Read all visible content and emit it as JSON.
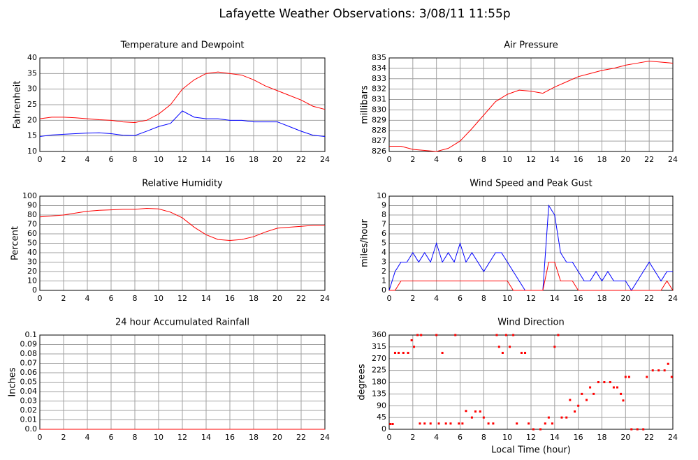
{
  "title": "Lafayette Weather Observations: 3/08/11 11:55p",
  "chart_data": [
    {
      "type": "line",
      "title": "Temperature and Dewpoint",
      "ylabel": "Fahrenheit",
      "x": [
        0,
        1,
        2,
        3,
        4,
        5,
        6,
        7,
        8,
        9,
        10,
        11,
        12,
        13,
        14,
        15,
        16,
        17,
        18,
        19,
        20,
        21,
        22,
        23,
        24
      ],
      "series": [
        {
          "color": "#ff0000",
          "values": [
            20.5,
            21,
            21,
            20.8,
            20.5,
            20.2,
            20,
            19.5,
            19.3,
            20,
            22,
            25,
            30,
            33,
            35,
            35.5,
            35,
            34.5,
            33,
            31,
            29.5,
            28,
            26.5,
            24.5,
            23.5
          ]
        },
        {
          "color": "#0000ff",
          "values": [
            14.8,
            15.3,
            15.5,
            15.7,
            15.9,
            16,
            15.7,
            15.2,
            15.1,
            16.5,
            18,
            19,
            23,
            21,
            20.5,
            20.5,
            20,
            20,
            19.5,
            19.5,
            19.5,
            18,
            16.5,
            15.2,
            14.8
          ]
        }
      ],
      "xlim": [
        0,
        24
      ],
      "xticks": [
        0,
        2,
        4,
        6,
        8,
        10,
        12,
        14,
        16,
        18,
        20,
        22,
        24
      ],
      "ylim": [
        10,
        40
      ],
      "yticks": [
        10,
        15,
        20,
        25,
        30,
        35,
        40
      ],
      "grid": true
    },
    {
      "type": "line",
      "title": "Air Pressure",
      "ylabel": "millibars",
      "x": [
        0,
        1,
        2,
        3,
        4,
        5,
        6,
        7,
        8,
        9,
        10,
        11,
        12,
        13,
        14,
        15,
        16,
        17,
        18,
        19,
        20,
        21,
        22,
        23,
        24
      ],
      "series": [
        {
          "color": "#ff0000",
          "values": [
            826.5,
            826.5,
            826.2,
            826.1,
            826,
            826.3,
            827,
            828.2,
            829.5,
            830.8,
            831.5,
            831.9,
            831.8,
            831.6,
            832.2,
            832.7,
            833.2,
            833.5,
            833.8,
            834,
            834.3,
            834.5,
            834.7,
            834.6,
            834.5
          ]
        }
      ],
      "xlim": [
        0,
        24
      ],
      "xticks": [
        0,
        2,
        4,
        6,
        8,
        10,
        12,
        14,
        16,
        18,
        20,
        22,
        24
      ],
      "ylim": [
        826,
        835
      ],
      "yticks": [
        826,
        827,
        828,
        829,
        830,
        831,
        832,
        833,
        834,
        835
      ],
      "grid": true
    },
    {
      "type": "line",
      "title": "Relative Humidity",
      "ylabel": "Percent",
      "x": [
        0,
        1,
        2,
        3,
        4,
        5,
        6,
        7,
        8,
        9,
        10,
        11,
        12,
        13,
        14,
        15,
        16,
        17,
        18,
        19,
        20,
        21,
        22,
        23,
        24
      ],
      "series": [
        {
          "color": "#ff0000",
          "values": [
            78,
            79,
            80,
            82,
            84,
            85,
            85.5,
            86,
            86,
            87,
            86.5,
            83,
            77,
            67,
            59,
            54,
            53,
            54,
            57,
            62,
            66,
            67,
            68,
            69,
            69
          ]
        }
      ],
      "xlim": [
        0,
        24
      ],
      "xticks": [
        0,
        2,
        4,
        6,
        8,
        10,
        12,
        14,
        16,
        18,
        20,
        22,
        24
      ],
      "ylim": [
        0,
        100
      ],
      "yticks": [
        0,
        10,
        20,
        30,
        40,
        50,
        60,
        70,
        80,
        90,
        100
      ],
      "grid": true
    },
    {
      "type": "line",
      "title": "Wind Speed and Peak Gust",
      "ylabel": "miles/hour",
      "x": [
        0,
        0.5,
        1,
        1.5,
        2,
        2.5,
        3,
        3.5,
        4,
        4.5,
        5,
        5.5,
        6,
        6.5,
        7,
        7.5,
        8,
        8.5,
        9,
        9.5,
        10,
        10.5,
        11,
        11.5,
        12,
        12.5,
        13,
        13.5,
        14,
        14.5,
        15,
        15.5,
        16,
        16.5,
        17,
        17.5,
        18,
        18.5,
        19,
        19.5,
        20,
        20.5,
        21,
        21.5,
        22,
        22.5,
        23,
        23.5,
        24
      ],
      "series": [
        {
          "color": "#0000ff",
          "values": [
            0,
            2,
            3,
            3,
            4,
            3,
            4,
            3,
            5,
            3,
            4,
            3,
            5,
            3,
            4,
            3,
            2,
            3,
            4,
            4,
            3,
            2,
            1,
            0,
            0,
            0,
            0,
            9,
            8,
            4,
            3,
            3,
            2,
            1,
            1,
            2,
            1,
            2,
            1,
            1,
            1,
            0,
            1,
            2,
            3,
            2,
            1,
            2,
            2
          ]
        },
        {
          "color": "#ff0000",
          "values": [
            0,
            0,
            1,
            1,
            1,
            1,
            1,
            1,
            1,
            1,
            1,
            1,
            1,
            1,
            1,
            1,
            1,
            1,
            1,
            1,
            1,
            0,
            0,
            0,
            0,
            0,
            0,
            3,
            3,
            1,
            1,
            1,
            0,
            0,
            0,
            0,
            0,
            0,
            0,
            0,
            0,
            0,
            0,
            0,
            0,
            0,
            0,
            1,
            0
          ]
        }
      ],
      "xlim": [
        0,
        24
      ],
      "xticks": [
        0,
        2,
        4,
        6,
        8,
        10,
        12,
        14,
        16,
        18,
        20,
        22,
        24
      ],
      "ylim": [
        0,
        10
      ],
      "yticks": [
        0,
        1,
        2,
        3,
        4,
        5,
        6,
        7,
        8,
        9,
        10
      ],
      "grid": true
    },
    {
      "type": "line",
      "title": "24 hour Accumulated Rainfall",
      "ylabel": "Inches",
      "x": [
        0,
        1,
        2,
        3,
        4,
        5,
        6,
        7,
        8,
        9,
        10,
        11,
        12,
        13,
        14,
        15,
        16,
        17,
        18,
        19,
        20,
        21,
        22,
        23,
        24
      ],
      "series": [
        {
          "color": "#ff0000",
          "values": [
            0,
            0,
            0,
            0,
            0,
            0,
            0,
            0,
            0,
            0,
            0,
            0,
            0,
            0,
            0,
            0,
            0,
            0,
            0,
            0,
            0,
            0,
            0,
            0,
            0
          ]
        }
      ],
      "xlim": [
        0,
        24
      ],
      "xticks": [
        0,
        2,
        4,
        6,
        8,
        10,
        12,
        14,
        16,
        18,
        20,
        22,
        24
      ],
      "ylim": [
        0,
        0.1
      ],
      "yticks": [
        {
          "value": 0,
          "label": "0.0"
        },
        0.01,
        0.02,
        0.03,
        0.04,
        0.05,
        0.06,
        0.07,
        0.08,
        0.09,
        0.1
      ],
      "grid": true
    },
    {
      "type": "scatter",
      "title": "Wind Direction",
      "ylabel": "degrees",
      "xlabel": "Local Time (hour)",
      "x": [
        0.1,
        0.3,
        0.5,
        0.8,
        1.2,
        1.6,
        1.9,
        2.1,
        2.4,
        2.7,
        2.6,
        3,
        3.5,
        4,
        4.2,
        4.5,
        4.8,
        5.2,
        5.6,
        5.9,
        6.2,
        6.5,
        7,
        7.3,
        7.7,
        8,
        8.4,
        8.8,
        9.1,
        9.3,
        9.6,
        9.9,
        10.2,
        10.5,
        10.8,
        11.2,
        11.5,
        11.8,
        12.2,
        12.8,
        13.2,
        13.5,
        13.8,
        14,
        14.3,
        14.6,
        15,
        15.3,
        15.7,
        16,
        16.3,
        16.7,
        17,
        17.3,
        17.7,
        18.2,
        18.7,
        19,
        19.3,
        19.6,
        19.8,
        20,
        20.3,
        20.5,
        21,
        21.5,
        21.8,
        22.3,
        22.8,
        23.3,
        23.6,
        23.9
      ],
      "series": [
        {
          "color": "#ff0000",
          "values": [
            20,
            20,
            292,
            292,
            292,
            292,
            340,
            315,
            360,
            360,
            22,
            22,
            22,
            360,
            22,
            292,
            22,
            22,
            360,
            22,
            22,
            70,
            45,
            68,
            68,
            45,
            22,
            22,
            360,
            315,
            292,
            360,
            315,
            360,
            22,
            292,
            292,
            22,
            0,
            0,
            22,
            45,
            22,
            315,
            360,
            45,
            45,
            112,
            68,
            90,
            135,
            112,
            160,
            135,
            180,
            180,
            180,
            160,
            160,
            135,
            110,
            200,
            200,
            0,
            0,
            0,
            200,
            225,
            225,
            225,
            250,
            200
          ]
        }
      ],
      "xlim": [
        0,
        24
      ],
      "xticks": [
        0,
        2,
        4,
        6,
        8,
        10,
        12,
        14,
        16,
        18,
        20,
        22,
        24
      ],
      "ylim": [
        0,
        360
      ],
      "yticks": [
        0,
        45,
        90,
        135,
        180,
        225,
        270,
        315,
        360
      ],
      "grid": true
    }
  ]
}
